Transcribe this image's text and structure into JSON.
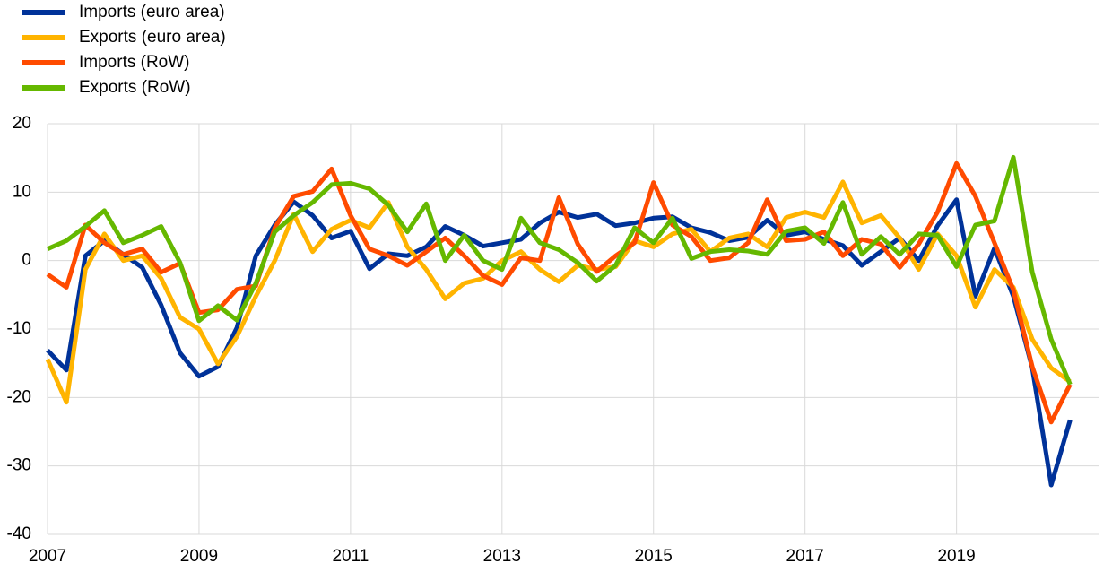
{
  "chart_data": {
    "type": "line",
    "x": [
      2007,
      2007.25,
      2007.5,
      2007.75,
      2008,
      2008.25,
      2008.5,
      2008.75,
      2009,
      2009.25,
      2009.5,
      2009.75,
      2010,
      2010.25,
      2010.5,
      2010.75,
      2011,
      2011.25,
      2011.5,
      2011.75,
      2012,
      2012.25,
      2012.5,
      2012.75,
      2013,
      2013.25,
      2013.5,
      2013.75,
      2014,
      2014.25,
      2014.5,
      2014.75,
      2015,
      2015.25,
      2015.5,
      2015.75,
      2016,
      2016.25,
      2016.5,
      2016.75,
      2017,
      2017.25,
      2017.5,
      2017.75,
      2018,
      2018.25,
      2018.5,
      2018.75,
      2019,
      2019.25,
      2019.5,
      2019.75,
      2020,
      2020.25,
      2020.5
    ],
    "series": [
      {
        "name": "Imports (euro area)",
        "color": "#003299",
        "values": [
          -13.1,
          -16,
          0.7,
          2.9,
          0.9,
          -1,
          -6.5,
          -13.5,
          -16.9,
          -15.5,
          -9.8,
          0.7,
          5.2,
          8.6,
          6.6,
          3.3,
          4.3,
          -1.2,
          1,
          0.7,
          2,
          5,
          3.7,
          2.1,
          2.6,
          3.1,
          5.5,
          7.1,
          6.3,
          6.8,
          5.1,
          5.5,
          6.2,
          6.4,
          4.8,
          4.1,
          2.9,
          3.4,
          5.9,
          3.7,
          4.2,
          3.1,
          2.2,
          -0.7,
          1.3,
          3.3,
          0,
          5.1,
          8.9,
          -5.2,
          1.8,
          -5.2,
          -15.7,
          -32.8,
          -23.3
        ]
      },
      {
        "name": "Exports (euro area)",
        "color": "#ffb400",
        "values": [
          -14.4,
          -20.7,
          -1.3,
          3.9,
          0,
          0.7,
          -2.6,
          -8.3,
          -10,
          -15.1,
          -11.1,
          -5.2,
          0,
          6.8,
          1.3,
          4.6,
          5.9,
          4.8,
          8.5,
          2,
          -1.3,
          -5.6,
          -3.3,
          -2.6,
          0,
          1.3,
          -1.3,
          -3.1,
          -0.7,
          -1.3,
          -0.9,
          2.9,
          2,
          3.9,
          4.6,
          1.3,
          3.3,
          3.9,
          2,
          6.3,
          7.1,
          6.3,
          11.5,
          5.5,
          6.6,
          3.3,
          -1.3,
          3.9,
          0.7,
          -6.8,
          -1.3,
          -3.9,
          -11.5,
          -15.7,
          -17.7
        ]
      },
      {
        "name": "Imports (RoW)",
        "color": "#ff4b00",
        "values": [
          -2,
          -3.9,
          5.2,
          2.6,
          0.9,
          1.7,
          -1.7,
          -0.4,
          -7.6,
          -7.2,
          -4.2,
          -3.7,
          4.8,
          9.4,
          10.1,
          13.4,
          6.6,
          1.7,
          0.7,
          -0.7,
          1.3,
          3.3,
          0.7,
          -2.2,
          -3.5,
          0.4,
          0,
          9.2,
          2.4,
          -1.6,
          0.7,
          2.6,
          11.4,
          5.2,
          3.5,
          0,
          0.4,
          2.6,
          8.9,
          2.9,
          3.1,
          4.2,
          0.7,
          3.1,
          2.4,
          -1,
          2.4,
          7.1,
          14.2,
          9.4,
          2.6,
          -4.3,
          -15.5,
          -23.6,
          -18.1
        ]
      },
      {
        "name": "Exports (RoW)",
        "color": "#65b800",
        "values": [
          1.7,
          2.9,
          5,
          7.3,
          2.6,
          3.7,
          5,
          -0.3,
          -8.8,
          -6.6,
          -8.7,
          -3.3,
          4.2,
          6.6,
          8.5,
          11.1,
          11.3,
          10.5,
          8.1,
          4.2,
          8.3,
          0,
          3.7,
          0,
          -1.3,
          6.2,
          2.6,
          1.6,
          -0.3,
          -3,
          -0.7,
          4.8,
          2.6,
          6.2,
          0.3,
          1.3,
          1.6,
          1.4,
          0.9,
          4.3,
          4.8,
          2.5,
          8.5,
          0.9,
          3.5,
          0.9,
          3.9,
          3.7,
          -0.9,
          5.2,
          5.8,
          15.1,
          -1.7,
          -11.5,
          -18.1
        ]
      }
    ],
    "xlim": [
      2007,
      2020.875
    ],
    "xticks": [
      2007,
      2009,
      2011,
      2013,
      2015,
      2017,
      2019
    ],
    "ylim": [
      -40,
      20
    ],
    "yticks": [
      -40,
      -30,
      -20,
      -10,
      0,
      10,
      20
    ],
    "grid": true,
    "legend": "top-left"
  }
}
